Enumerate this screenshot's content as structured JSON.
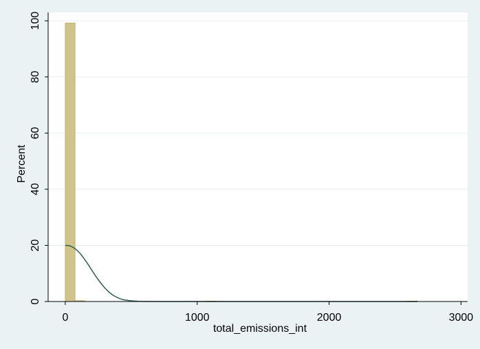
{
  "chart_data": {
    "type": "bar",
    "subtype": "histogram-with-density",
    "title": "",
    "xlabel": "total_emissions_int",
    "ylabel": "Percent",
    "xlim": [
      -130,
      3050
    ],
    "ylim": [
      0,
      103
    ],
    "xticks": [
      0,
      1000,
      2000,
      3000
    ],
    "yticks": [
      0,
      20,
      40,
      60,
      80,
      100
    ],
    "grid": true,
    "legend": "none",
    "bin_width": 74,
    "bins": [
      {
        "start": 0,
        "end": 74,
        "value": 99.2
      },
      {
        "start": 74,
        "end": 148,
        "value": 0.3
      },
      {
        "start": 1067,
        "end": 1141,
        "value": 0.15
      },
      {
        "start": 2593,
        "end": 2667,
        "value": 0.15
      }
    ],
    "density_curve": {
      "x": [
        0,
        30,
        60,
        90,
        120,
        150,
        180,
        210,
        240,
        270,
        300,
        330,
        360,
        390,
        420,
        450,
        500,
        550,
        600,
        700,
        800,
        1000,
        1500,
        2000,
        2500,
        2670
      ],
      "y": [
        20.0,
        19.9,
        19.3,
        18.2,
        16.7,
        14.8,
        12.7,
        10.5,
        8.4,
        6.5,
        4.8,
        3.4,
        2.3,
        1.5,
        0.9,
        0.55,
        0.25,
        0.1,
        0.04,
        0.01,
        0,
        0,
        0,
        0,
        0,
        0
      ]
    },
    "colors": {
      "background": "#eaf2f3",
      "plot_area": "#ffffff",
      "bar_fill": "#d1c48a",
      "bar_edge": "#b8a868",
      "density_line": "#2f5d55",
      "grid": "#e8eeee"
    }
  }
}
